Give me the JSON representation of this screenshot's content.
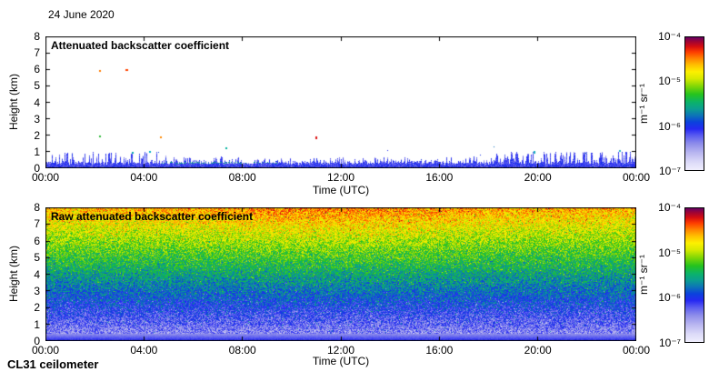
{
  "page": {
    "date_label": "24 June 2020",
    "instrument_label": "CL31 ceilometer",
    "background": "#ffffff"
  },
  "styles": {
    "axis_color": "#000000",
    "text_color": "#000000"
  },
  "colormap": {
    "scale": "log10 attenuated backscatter, 1e-7 m-1 sr-1 (bottom, pale lavender) to 1e-4 m-1 sr-1 (top, dark purple)",
    "stops": [
      [
        0,
        "#efeefd"
      ],
      [
        0.06,
        "#dcdaf8"
      ],
      [
        0.13,
        "#b9b6f0"
      ],
      [
        0.2,
        "#8d8cea"
      ],
      [
        0.26,
        "#5a5cf0"
      ],
      [
        0.31,
        "#2629f2"
      ],
      [
        0.36,
        "#0b41dd"
      ],
      [
        0.41,
        "#0d73b8"
      ],
      [
        0.46,
        "#0b9d92"
      ],
      [
        0.51,
        "#0bb26a"
      ],
      [
        0.57,
        "#25c31e"
      ],
      [
        0.63,
        "#7fd606"
      ],
      [
        0.69,
        "#d8ea00"
      ],
      [
        0.74,
        "#fdf000"
      ],
      [
        0.79,
        "#ffc100"
      ],
      [
        0.84,
        "#ff8400"
      ],
      [
        0.89,
        "#fd3c00"
      ],
      [
        0.93,
        "#d60d10"
      ],
      [
        0.97,
        "#9c0336"
      ],
      [
        1,
        "#650264"
      ]
    ]
  },
  "chart_data": [
    {
      "type": "heatmap",
      "title": "Attenuated backscatter coefficient",
      "xlabel": "Time (UTC)",
      "ylabel": "Height (km)",
      "x_ticks": [
        "00:00",
        "04:00",
        "08:00",
        "12:00",
        "16:00",
        "20:00",
        "00:00"
      ],
      "x_range_hours": [
        0,
        24
      ],
      "y_ticks": [
        "0",
        "1",
        "2",
        "3",
        "4",
        "5",
        "6",
        "7",
        "8"
      ],
      "y_range_km": [
        0,
        8
      ],
      "grid": false,
      "legend": "colorbar right",
      "colorbar": {
        "unit": "m⁻¹ sr⁻¹",
        "tick_labels": [
          "10⁻⁴",
          "10⁻⁵",
          "10⁻⁶",
          "10⁻⁷"
        ],
        "value_top": 0.0001,
        "value_bottom": 1e-07
      },
      "content": {
        "background": "white (below detection limit)",
        "aerosol_layer": {
          "description": "shallow blue surface aerosol/noise layer ~0.3 km deep with spikes; spikes taller 00:00-05:00 and strongest 20:00-24:00, flattest 06:00-17:00",
          "solid_km_min": 0.24,
          "solid_km_max": 0.36,
          "spike_scale_km": 0.72,
          "tall_spike_prob": 0.05,
          "tall_spike_extra_km": 0.22,
          "max_km": 1.02,
          "body_t": 0.24,
          "activity": [
            [
              0,
              1.0
            ],
            [
              4.5,
              1.0
            ],
            [
              6,
              0.52
            ],
            [
              16.5,
              0.45
            ],
            [
              21,
              1.5
            ],
            [
              24,
              1.4
            ]
          ]
        },
        "teal_streak": {
          "from_h": 4.6,
          "to_h": 9.4,
          "color": "#12a38c"
        },
        "speckle": {
          "max_height_km": 1.35,
          "probability": 0.0007
        },
        "isolated_echoes": [
          {
            "time_h": 2.2,
            "height_km": 5.9,
            "color": "#ff7b00"
          },
          {
            "time_h": 3.3,
            "height_km": 5.95,
            "color": "#ff4400",
            "w": 3
          },
          {
            "time_h": 2.2,
            "height_km": 1.95,
            "color": "#2fba3a"
          },
          {
            "time_h": 4.7,
            "height_km": 1.85,
            "color": "#ff8800"
          },
          {
            "time_h": 3.55,
            "height_km": 0.95,
            "color": "#00a9b0"
          },
          {
            "time_h": 4.25,
            "height_km": 1.0,
            "color": "#00b4c4"
          },
          {
            "time_h": 7.35,
            "height_km": 1.2,
            "color": "#00b39e"
          },
          {
            "time_h": 11.0,
            "height_km": 1.85,
            "color": "#dd1414",
            "hpx": 3
          },
          {
            "time_h": 19.85,
            "height_km": 1.0,
            "color": "#18aebe",
            "hpx": 3
          },
          {
            "time_h": 23.35,
            "height_km": 1.05,
            "color": "#2bb7c9"
          }
        ]
      }
    },
    {
      "type": "heatmap",
      "title": "Raw attenuated backscatter coefficient",
      "xlabel": "Time (UTC)",
      "ylabel": "Height (km)",
      "x_ticks": [
        "00:00",
        "04:00",
        "08:00",
        "12:00",
        "16:00",
        "20:00",
        "00:00"
      ],
      "x_range_hours": [
        0,
        24
      ],
      "y_ticks": [
        "0",
        "1",
        "2",
        "3",
        "4",
        "5",
        "6",
        "7",
        "8"
      ],
      "y_range_km": [
        0,
        8
      ],
      "grid": false,
      "legend": "colorbar right",
      "colorbar": {
        "unit": "m⁻¹ sr⁻¹",
        "tick_labels": [
          "10⁻⁴",
          "10⁻⁵",
          "10⁻⁶",
          "10⁻⁷"
        ],
        "value_top": 0.0001,
        "value_bottom": 1e-07
      },
      "content": {
        "description": "uncorrected range-squared noise: rainbow speckle grading from pale/blue near ground, blue with white specks 0.5-2 km, green 3-5 km, yellow-green 5-6.5 km, orange/red 7-8 km; smooth blue surface layer below ~0.45 km",
        "noise_model": {
          "base_t_at_0km": 0.165,
          "t_per_km": 0.0795,
          "noise_amp": 0.105,
          "outlier_prob": 0.07,
          "outlier_mult": 2.1,
          "midday_boost": 0.05,
          "midday_center_h": 11.5,
          "midday_width_h": 5.5,
          "surface_layer_km": 0.45,
          "surface_t_top": 0.19,
          "surface_t_bottom": 0.32
        }
      }
    }
  ]
}
